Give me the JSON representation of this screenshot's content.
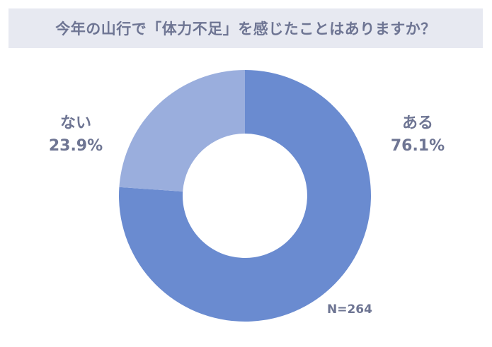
{
  "header": {
    "title": "今年の山行で「体力不足」を感じたことはありますか？"
  },
  "colors": {
    "title_bg": "#e7e9f1",
    "text": "#6e7593",
    "slice_yes": "#6a8bd0",
    "slice_no": "#9aaedd"
  },
  "labels": {
    "yes": {
      "name": "ある",
      "pct": "76.1%"
    },
    "no": {
      "name": "ない",
      "pct": "23.9%"
    },
    "sample": "N=264"
  },
  "chart_data": {
    "type": "pie",
    "variant": "donut",
    "title": "今年の山行で「体力不足」を感じたことはありますか？",
    "categories": [
      "ある",
      "ない"
    ],
    "values": [
      76.1,
      23.9
    ],
    "unit": "%",
    "sample_size": 264,
    "annotations": [
      "N=264"
    ],
    "start_angle_deg": 0,
    "direction": "clockwise",
    "colors": [
      "#6a8bd0",
      "#9aaedd"
    ],
    "legend": "none (direct labels)"
  }
}
